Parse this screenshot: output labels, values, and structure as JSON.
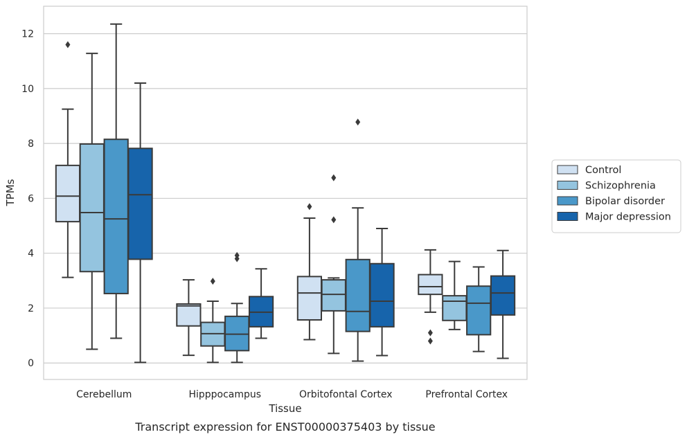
{
  "chart_data": {
    "type": "box",
    "title": "",
    "caption": "Transcript expression for ENST00000375403 by tissue",
    "xlabel": "Tissue",
    "ylabel": "TPMs",
    "ylim": [
      -0.6,
      13.0
    ],
    "yticks": [
      0,
      2,
      4,
      6,
      8,
      10,
      12
    ],
    "grid": "horizontal",
    "legend_position": "right",
    "categories": [
      "Cerebellum",
      "Hipppocampus",
      "Orbitofontal Cortex",
      "Prefrontal Cortex"
    ],
    "series": [
      {
        "name": "Control",
        "color": "#d0e1f2",
        "boxes": [
          {
            "whisker_low": 3.12,
            "q1": 5.15,
            "median": 6.08,
            "q3": 7.2,
            "whisker_high": 9.25,
            "outliers": [
              11.6
            ]
          },
          {
            "whisker_low": 0.28,
            "q1": 1.35,
            "median": 2.08,
            "q3": 2.15,
            "whisker_high": 3.03,
            "outliers": []
          },
          {
            "whisker_low": 0.85,
            "q1": 1.57,
            "median": 2.55,
            "q3": 3.15,
            "whisker_high": 5.28,
            "outliers": [
              5.7
            ]
          },
          {
            "whisker_low": 1.85,
            "q1": 2.5,
            "median": 2.78,
            "q3": 3.22,
            "whisker_high": 4.12,
            "outliers": [
              0.8,
              1.1
            ]
          }
        ]
      },
      {
        "name": "Schizophrenia",
        "color": "#94c4df",
        "boxes": [
          {
            "whisker_low": 0.5,
            "q1": 3.33,
            "median": 5.48,
            "q3": 7.98,
            "whisker_high": 11.28,
            "outliers": []
          },
          {
            "whisker_low": 0.02,
            "q1": 0.62,
            "median": 1.07,
            "q3": 1.48,
            "whisker_high": 2.25,
            "outliers": [
              2.98
            ]
          },
          {
            "whisker_low": 0.35,
            "q1": 1.9,
            "median": 2.5,
            "q3": 3.03,
            "whisker_high": 3.1,
            "outliers": [
              5.22,
              6.75
            ]
          },
          {
            "whisker_low": 1.22,
            "q1": 1.55,
            "median": 2.25,
            "q3": 2.45,
            "whisker_high": 3.7,
            "outliers": []
          }
        ]
      },
      {
        "name": "Bipolar disorder",
        "color": "#4a98c9",
        "boxes": [
          {
            "whisker_low": 0.9,
            "q1": 2.53,
            "median": 5.25,
            "q3": 8.15,
            "whisker_high": 12.35,
            "outliers": []
          },
          {
            "whisker_low": 0.02,
            "q1": 0.45,
            "median": 1.05,
            "q3": 1.7,
            "whisker_high": 2.17,
            "outliers": [
              3.8,
              3.92
            ]
          },
          {
            "whisker_low": 0.07,
            "q1": 1.15,
            "median": 1.88,
            "q3": 3.77,
            "whisker_high": 5.65,
            "outliers": [
              8.78
            ]
          },
          {
            "whisker_low": 0.42,
            "q1": 1.03,
            "median": 2.18,
            "q3": 2.8,
            "whisker_high": 3.5,
            "outliers": []
          }
        ]
      },
      {
        "name": "Major depression",
        "color": "#1764ab",
        "boxes": [
          {
            "whisker_low": 0.02,
            "q1": 3.78,
            "median": 6.13,
            "q3": 7.82,
            "whisker_high": 10.2,
            "outliers": []
          },
          {
            "whisker_low": 0.9,
            "q1": 1.32,
            "median": 1.85,
            "q3": 2.42,
            "whisker_high": 3.43,
            "outliers": []
          },
          {
            "whisker_low": 0.27,
            "q1": 1.32,
            "median": 2.25,
            "q3": 3.62,
            "whisker_high": 4.9,
            "outliers": []
          },
          {
            "whisker_low": 0.17,
            "q1": 1.75,
            "median": 2.55,
            "q3": 3.17,
            "whisker_high": 4.1,
            "outliers": []
          }
        ]
      }
    ]
  }
}
